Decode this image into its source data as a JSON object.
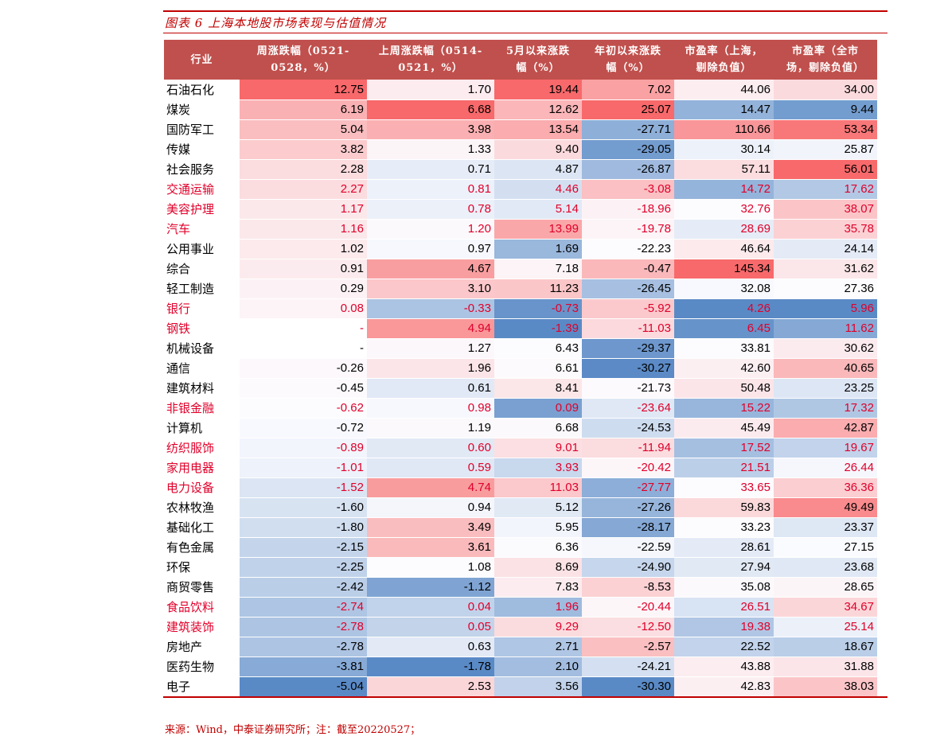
{
  "title": "图表 6 上海本地股市场表现与估值情况",
  "headers": [
    "行业",
    "周涨跌幅（0521-\n0528，%）",
    "上周涨跌幅（0514-\n0521，%）",
    "5月以来涨跌\n幅（%）",
    "年初以来涨跌\n幅（%）",
    "市盈率（上海，\n剔除负值）",
    "市盈率（全市\n场，剔除负值）"
  ],
  "rows": [
    {
      "name": "石油石化",
      "red": false,
      "cells": [
        "12.75",
        "1.70",
        "19.44",
        "7.02",
        "44.06",
        "34.00"
      ]
    },
    {
      "name": "煤炭",
      "red": false,
      "cells": [
        "6.19",
        "6.68",
        "12.62",
        "25.07",
        "14.47",
        "9.44"
      ]
    },
    {
      "name": "国防军工",
      "red": false,
      "cells": [
        "5.04",
        "3.98",
        "13.54",
        "-27.71",
        "110.66",
        "53.34"
      ]
    },
    {
      "name": "传媒",
      "red": false,
      "cells": [
        "3.82",
        "1.33",
        "9.40",
        "-29.05",
        "30.14",
        "25.87"
      ]
    },
    {
      "name": "社会服务",
      "red": false,
      "cells": [
        "2.28",
        "0.71",
        "4.87",
        "-26.87",
        "57.11",
        "56.01"
      ]
    },
    {
      "name": "交通运输",
      "red": true,
      "cells": [
        "2.27",
        "0.81",
        "4.46",
        "-3.08",
        "14.72",
        "17.62"
      ]
    },
    {
      "name": "美容护理",
      "red": true,
      "cells": [
        "1.17",
        "0.78",
        "5.14",
        "-18.96",
        "32.76",
        "38.07"
      ]
    },
    {
      "name": "汽车",
      "red": true,
      "cells": [
        "1.16",
        "1.20",
        "13.99",
        "-19.78",
        "28.69",
        "35.78"
      ]
    },
    {
      "name": "公用事业",
      "red": false,
      "cells": [
        "1.02",
        "0.97",
        "1.69",
        "-22.23",
        "46.64",
        "24.14"
      ]
    },
    {
      "name": "综合",
      "red": false,
      "cells": [
        "0.91",
        "4.67",
        "7.18",
        "-0.47",
        "145.34",
        "31.62"
      ]
    },
    {
      "name": "轻工制造",
      "red": false,
      "cells": [
        "0.29",
        "3.10",
        "11.23",
        "-26.45",
        "32.08",
        "27.36"
      ]
    },
    {
      "name": "银行",
      "red": true,
      "cells": [
        "0.08",
        "-0.33",
        "-0.73",
        "-5.92",
        "4.26",
        "5.96"
      ]
    },
    {
      "name": "钢铁",
      "red": true,
      "cells": [
        "-",
        "4.94",
        "-1.39",
        "-11.03",
        "6.45",
        "11.62"
      ]
    },
    {
      "name": "机械设备",
      "red": false,
      "cells": [
        "-",
        "1.27",
        "6.43",
        "-29.37",
        "33.81",
        "30.62"
      ]
    },
    {
      "name": "通信",
      "red": false,
      "cells": [
        "-0.26",
        "1.96",
        "6.61",
        "-30.27",
        "42.60",
        "40.65"
      ]
    },
    {
      "name": "建筑材料",
      "red": false,
      "cells": [
        "-0.45",
        "0.61",
        "8.41",
        "-21.73",
        "50.48",
        "23.25"
      ]
    },
    {
      "name": "非银金融",
      "red": true,
      "cells": [
        "-0.62",
        "0.98",
        "0.09",
        "-23.64",
        "15.22",
        "17.32"
      ]
    },
    {
      "name": "计算机",
      "red": false,
      "cells": [
        "-0.72",
        "1.19",
        "6.68",
        "-24.53",
        "45.49",
        "42.87"
      ]
    },
    {
      "name": "纺织服饰",
      "red": true,
      "cells": [
        "-0.89",
        "0.60",
        "9.01",
        "-11.94",
        "17.52",
        "19.67"
      ]
    },
    {
      "name": "家用电器",
      "red": true,
      "cells": [
        "-1.01",
        "0.59",
        "3.93",
        "-20.42",
        "21.51",
        "26.44"
      ]
    },
    {
      "name": "电力设备",
      "red": true,
      "cells": [
        "-1.52",
        "4.74",
        "11.03",
        "-27.77",
        "33.65",
        "36.36"
      ]
    },
    {
      "name": "农林牧渔",
      "red": false,
      "cells": [
        "-1.60",
        "0.94",
        "5.12",
        "-27.26",
        "59.83",
        "49.49"
      ]
    },
    {
      "name": "基础化工",
      "red": false,
      "cells": [
        "-1.80",
        "3.49",
        "5.95",
        "-28.17",
        "33.23",
        "23.37"
      ]
    },
    {
      "name": "有色金属",
      "red": false,
      "cells": [
        "-2.15",
        "3.61",
        "6.36",
        "-22.59",
        "28.61",
        "27.15"
      ]
    },
    {
      "name": "环保",
      "red": false,
      "cells": [
        "-2.25",
        "1.08",
        "8.69",
        "-24.90",
        "27.94",
        "23.68"
      ]
    },
    {
      "name": "商贸零售",
      "red": false,
      "cells": [
        "-2.42",
        "-1.12",
        "7.83",
        "-8.53",
        "35.08",
        "28.65"
      ]
    },
    {
      "name": "食品饮料",
      "red": true,
      "cells": [
        "-2.74",
        "0.04",
        "1.96",
        "-20.44",
        "26.51",
        "34.67"
      ]
    },
    {
      "name": "建筑装饰",
      "red": true,
      "cells": [
        "-2.78",
        "0.05",
        "9.29",
        "-12.50",
        "19.38",
        "25.14"
      ]
    },
    {
      "name": "房地产",
      "red": false,
      "cells": [
        "-2.78",
        "0.63",
        "2.71",
        "-2.57",
        "22.52",
        "18.67"
      ]
    },
    {
      "name": "医药生物",
      "red": false,
      "cells": [
        "-3.81",
        "-1.78",
        "2.10",
        "-24.21",
        "43.88",
        "31.88"
      ]
    },
    {
      "name": "电子",
      "red": false,
      "cells": [
        "-5.04",
        "2.53",
        "3.56",
        "-30.30",
        "42.83",
        "38.03"
      ]
    }
  ],
  "colors": {
    "header_bg": "#c0504d",
    "accent": "#c00000",
    "highlight_text": "#e0002a",
    "scale_high": "#f8696b",
    "scale_mid": "#fcfcff",
    "scale_low": "#5a8ac6"
  },
  "source": "来源：Wind，中泰证券研究所；注：截至20220527；"
}
